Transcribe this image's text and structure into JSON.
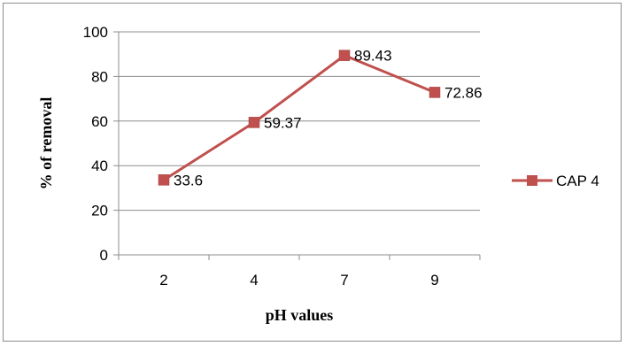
{
  "chart_data": {
    "type": "line",
    "title": "",
    "xlabel": "pH values",
    "ylabel": "%  of  removal",
    "categories": [
      "2",
      "4",
      "7",
      "9"
    ],
    "series": [
      {
        "name": "CAP 4",
        "values": [
          33.6,
          59.37,
          89.43,
          72.86
        ],
        "color": "#c0504d"
      }
    ],
    "data_labels": [
      "33.6",
      "59.37",
      "89.43",
      "72.86"
    ],
    "y_ticks": [
      0,
      20,
      40,
      60,
      80,
      100
    ],
    "ylim": [
      0,
      100
    ],
    "grid": true,
    "legend_position": "right"
  }
}
